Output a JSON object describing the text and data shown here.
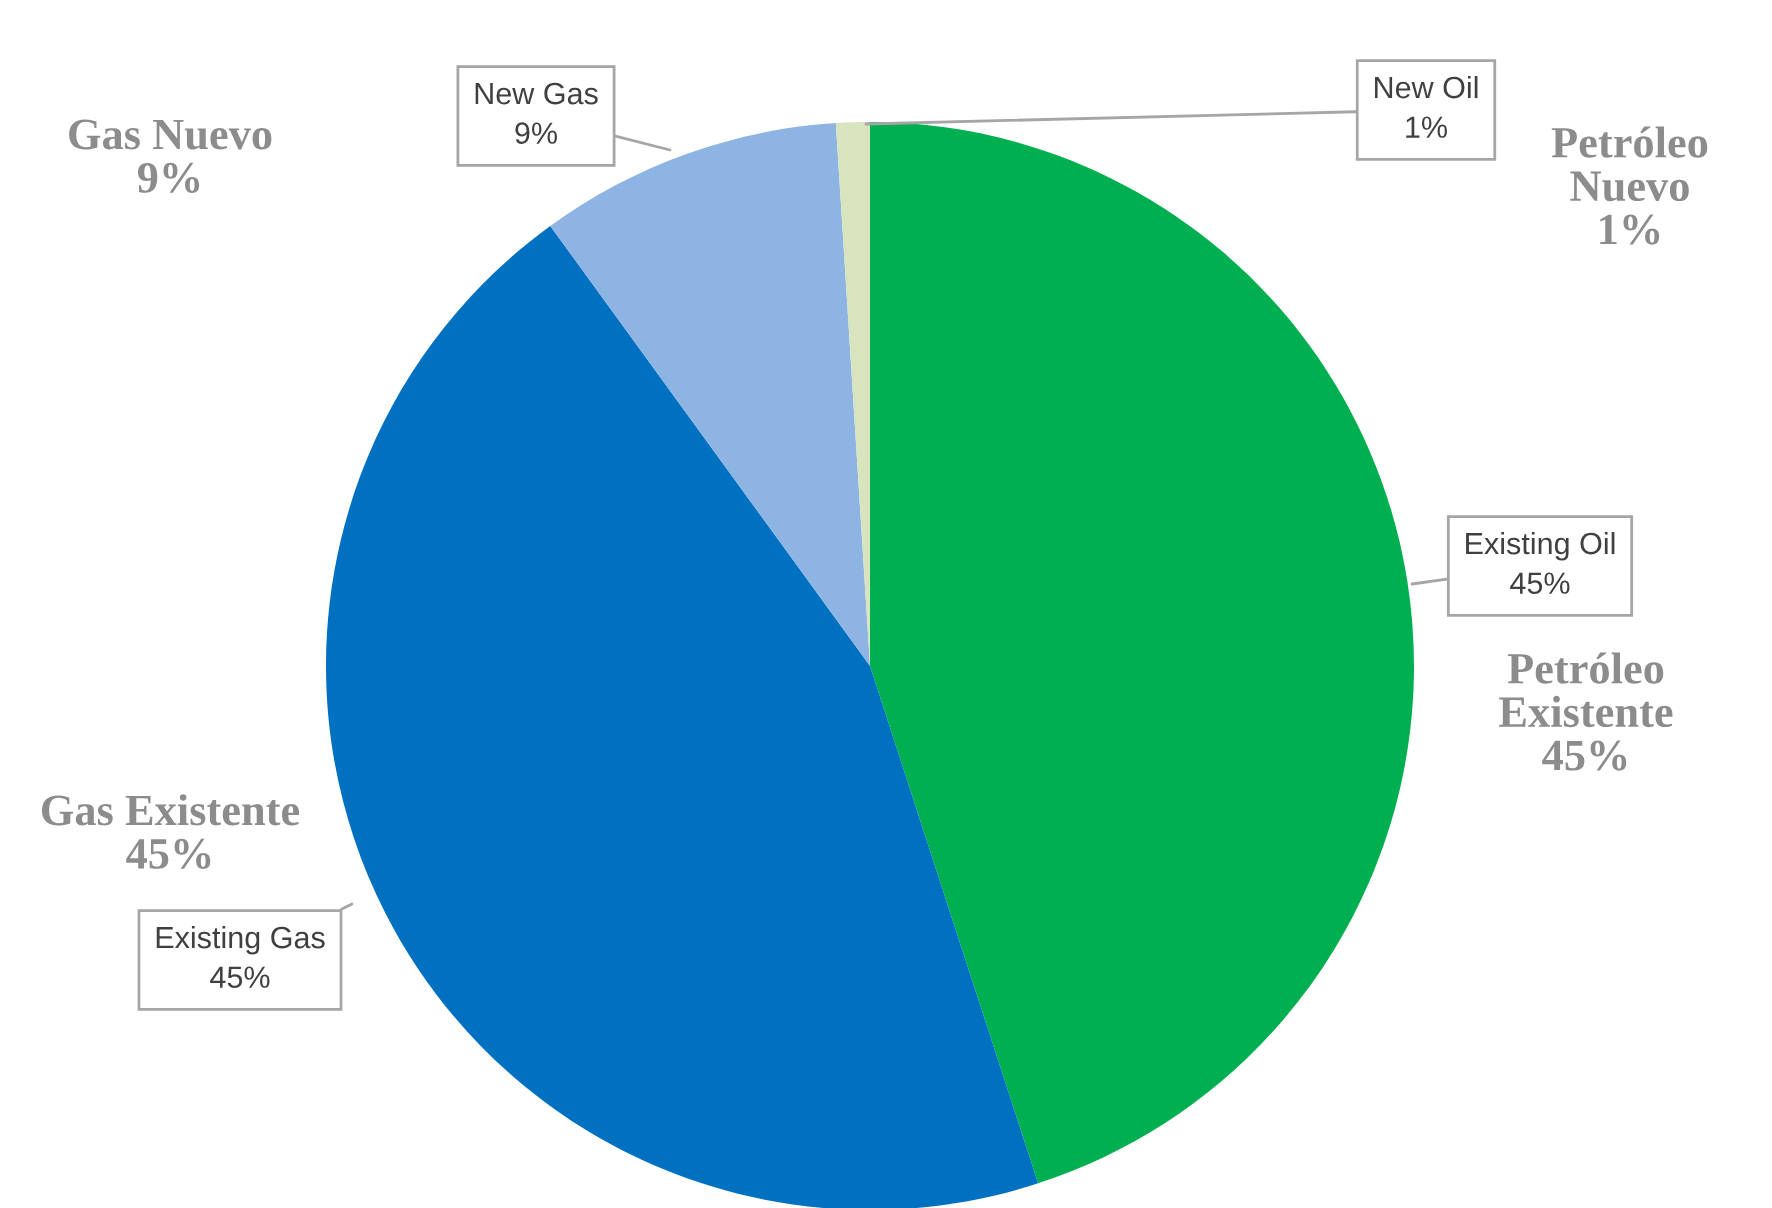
{
  "chart_data": {
    "type": "pie",
    "categories": [
      "Existing Oil",
      "Existing Gas",
      "New Gas",
      "New Oil"
    ],
    "values": [
      45,
      45,
      9,
      1
    ],
    "colors": [
      "#00b050",
      "#0070c0",
      "#8eb4e3",
      "#d7e4bd"
    ],
    "value_labels": [
      "45%",
      "45%",
      "9%",
      "1%"
    ],
    "annotations": [
      "Petróleo\nExistente\n45%",
      "Gas Existente\n45%",
      "Gas Nuevo\n9%",
      "Petróleo\nNuevo\n1%"
    ],
    "legend": false
  }
}
